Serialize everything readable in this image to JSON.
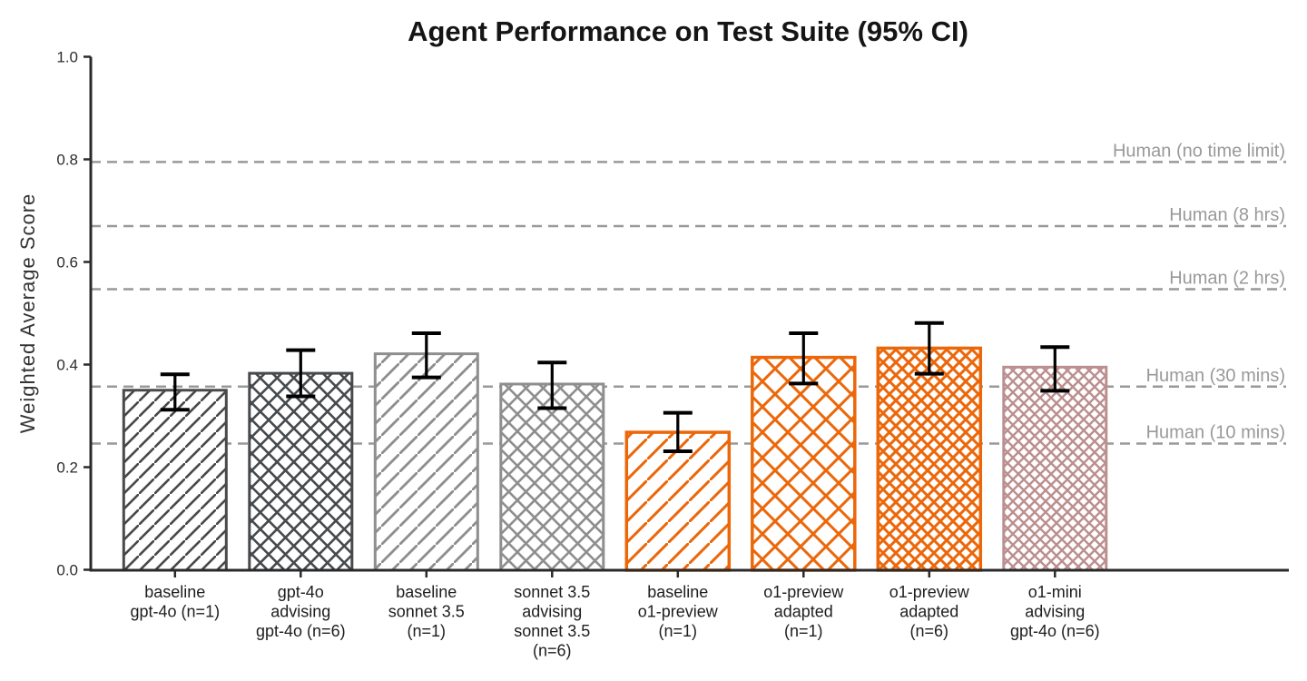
{
  "chart_data": {
    "type": "bar",
    "title": "Agent Performance on Test Suite (95% CI)",
    "xlabel": "",
    "ylabel": "Weighted Average Score",
    "ylim": [
      0.0,
      1.0
    ],
    "yticks": [
      0.0,
      0.2,
      0.4,
      0.6,
      0.8,
      1.0
    ],
    "grid": false,
    "legend": "none",
    "error_bars": "95% confidence interval",
    "bars": [
      {
        "label_lines": [
          "baseline",
          "gpt-4o (n=1)"
        ],
        "value": 0.35,
        "ci_low": 0.312,
        "ci_high": 0.381,
        "color": "#494949",
        "hatch": "diag",
        "spacing": 17,
        "hatch_lw": 2.6,
        "edge_lw": 3
      },
      {
        "label_lines": [
          "gpt-4o",
          "advising",
          "gpt-4o (n=6)"
        ],
        "value": 0.383,
        "ci_low": 0.338,
        "ci_high": 0.428,
        "color": "#474a4d",
        "hatch": "cross",
        "spacing": 18.5,
        "hatch_lw": 2.6,
        "edge_lw": 3
      },
      {
        "label_lines": [
          "baseline",
          "sonnet 3.5",
          "(n=1)"
        ],
        "value": 0.421,
        "ci_low": 0.375,
        "ci_high": 0.461,
        "color": "#8e8e8e",
        "hatch": "diag",
        "spacing": 20,
        "hatch_lw": 2.8,
        "edge_lw": 3
      },
      {
        "label_lines": [
          "sonnet 3.5",
          "advising",
          "sonnet 3.5",
          "(n=6)"
        ],
        "value": 0.362,
        "ci_low": 0.315,
        "ci_high": 0.404,
        "color": "#8e8e8e",
        "hatch": "cross",
        "spacing": 19,
        "hatch_lw": 2.6,
        "edge_lw": 3
      },
      {
        "label_lines": [
          "baseline",
          "o1-preview",
          "(n=1)"
        ],
        "value": 0.268,
        "ci_low": 0.231,
        "ci_high": 0.306,
        "color": "#EB6709",
        "hatch": "diag",
        "spacing": 23,
        "hatch_lw": 3,
        "edge_lw": 3.5
      },
      {
        "label_lines": [
          "o1-preview",
          "adapted",
          "(n=1)"
        ],
        "value": 0.414,
        "ci_low": 0.363,
        "ci_high": 0.461,
        "color": "#EB6709",
        "hatch": "cross",
        "spacing": 28,
        "hatch_lw": 3,
        "edge_lw": 3.5
      },
      {
        "label_lines": [
          "o1-preview",
          "adapted",
          "(n=6)"
        ],
        "value": 0.432,
        "ci_low": 0.382,
        "ci_high": 0.481,
        "color": "#EB6709",
        "hatch": "cross",
        "spacing": 14,
        "hatch_lw": 3,
        "edge_lw": 3.5
      },
      {
        "label_lines": [
          "o1-mini",
          "advising",
          "gpt-4o (n=6)"
        ],
        "value": 0.395,
        "ci_low": 0.349,
        "ci_high": 0.434,
        "color": "#BC8F8F",
        "hatch": "cross",
        "spacing": 12,
        "hatch_lw": 2.4,
        "edge_lw": 3
      }
    ],
    "reference_lines": [
      {
        "label": "Human (no time limit)",
        "value": 0.795
      },
      {
        "label": "Human (8 hrs)",
        "value": 0.67
      },
      {
        "label": "Human (2 hrs)",
        "value": 0.547
      },
      {
        "label": "Human (30 mins)",
        "value": 0.357
      },
      {
        "label": "Human (10 mins)",
        "value": 0.246
      }
    ],
    "colors": {
      "background": "#ffffff",
      "axis": "#2a2a2a",
      "tick_label": "#2d2d2d",
      "x_label": "#1e1e1e",
      "title": "#151515",
      "ylabel": "#333333",
      "reference": "#999999",
      "error_bar": "#000000",
      "bar_fill": "#ffffff"
    }
  }
}
